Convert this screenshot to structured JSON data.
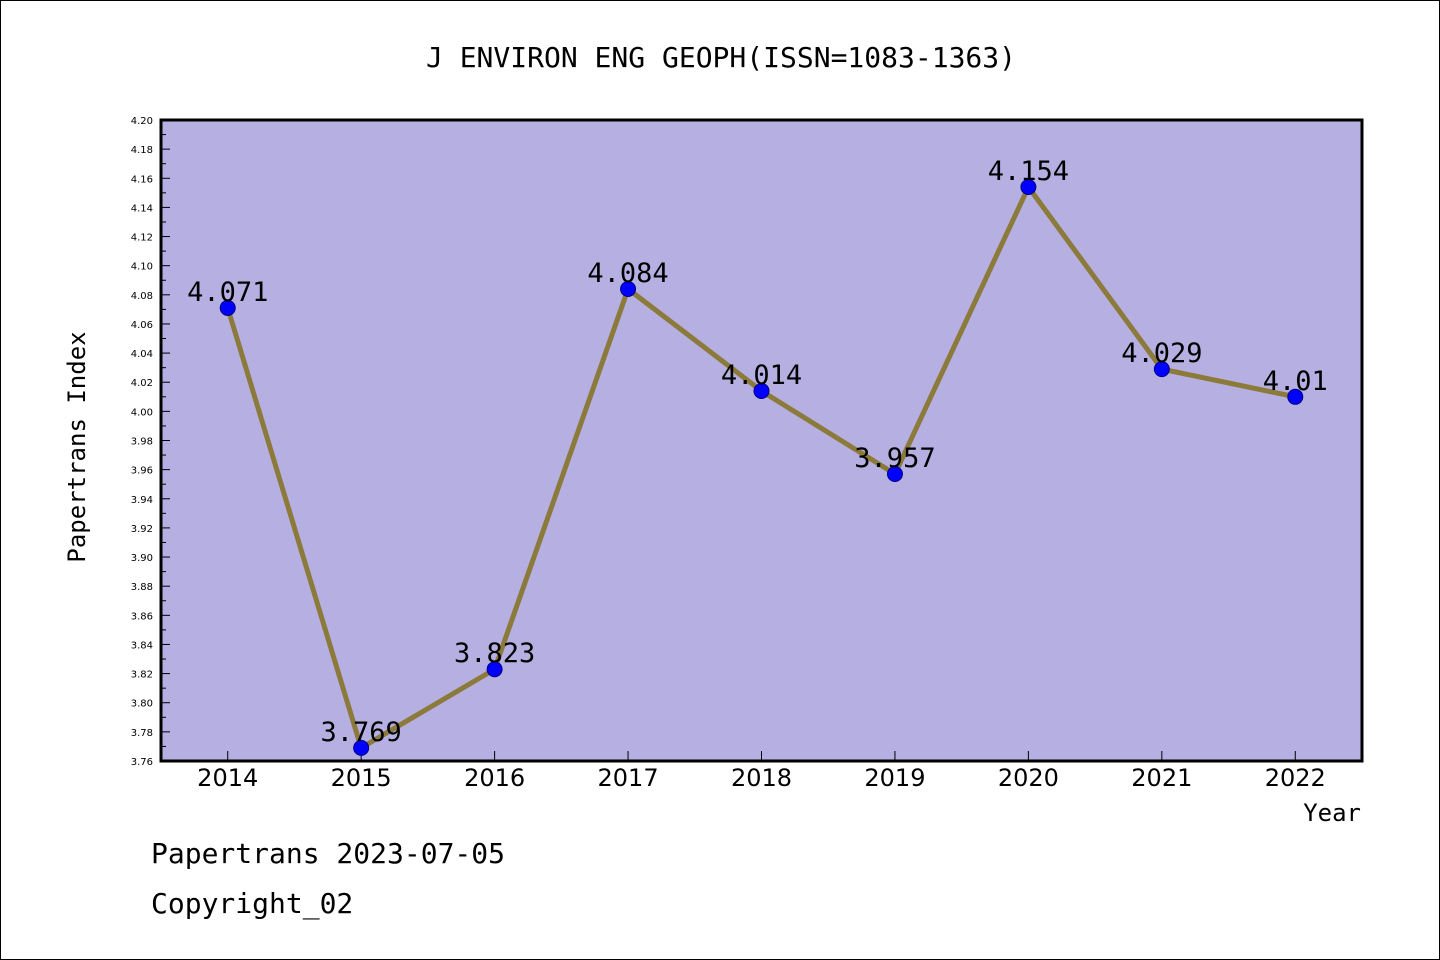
{
  "chart_data": {
    "type": "line",
    "title": "J ENVIRON ENG GEOPH(ISSN=1083-1363)",
    "xlabel": "Year",
    "ylabel": "Papertrans Index",
    "categories": [
      "2014",
      "2015",
      "2016",
      "2017",
      "2018",
      "2019",
      "2020",
      "2021",
      "2022"
    ],
    "series": [
      {
        "values": [
          4.071,
          3.769,
          3.823,
          4.084,
          4.014,
          3.957,
          4.154,
          4.029,
          4.01
        ],
        "labels": [
          "4.071",
          "3.769",
          "3.823",
          "4.084",
          "4.014",
          "3.957",
          "4.154",
          "4.029",
          "4.01"
        ]
      }
    ],
    "ylim": [
      3.76,
      4.2
    ],
    "yticks": [
      "3.76",
      "3.78",
      "3.80",
      "3.82",
      "3.84",
      "3.86",
      "3.88",
      "3.90",
      "3.92",
      "3.94",
      "3.96",
      "3.98",
      "4.00",
      "4.02",
      "4.04",
      "4.06",
      "4.08",
      "4.10",
      "4.12",
      "4.14",
      "4.16",
      "4.18",
      "4.20"
    ],
    "grid": false,
    "colors": {
      "plot_background": "#b5afe2",
      "line": "#8c7a3a",
      "marker": "#0000ff",
      "marker_edge": "#000080"
    }
  },
  "footer": {
    "line1": "Papertrans 2023-07-05",
    "line2": "Copyright_02"
  }
}
